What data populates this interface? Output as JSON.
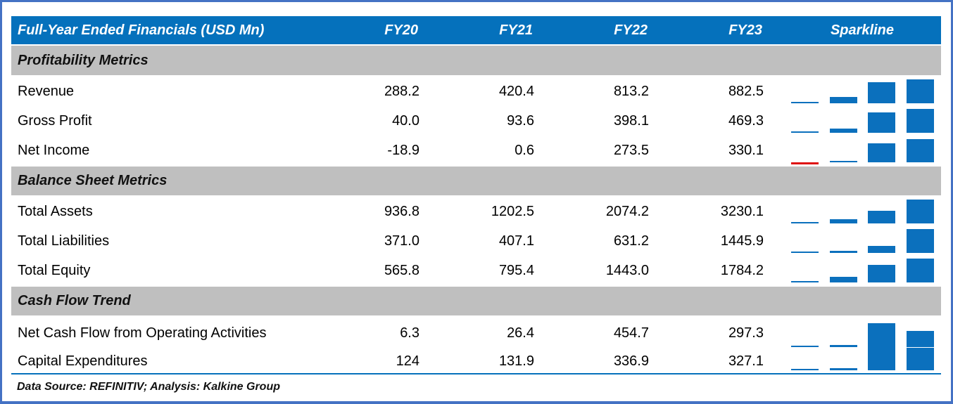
{
  "table": {
    "title": "Full-Year Ended Financials (USD Mn)",
    "columns": [
      "FY20",
      "FY21",
      "FY22",
      "FY23"
    ],
    "sparkline_header": "Sparkline",
    "sections": [
      {
        "heading": "Profitability Metrics",
        "rows": [
          {
            "label": "Revenue",
            "values": [
              "288.2",
              "420.4",
              "813.2",
              "882.5"
            ]
          },
          {
            "label": "Gross Profit",
            "values": [
              "40.0",
              "93.6",
              "398.1",
              "469.3"
            ]
          },
          {
            "label": "Net Income",
            "values": [
              "-18.9",
              "0.6",
              "273.5",
              "330.1"
            ]
          }
        ]
      },
      {
        "heading": "Balance Sheet Metrics",
        "rows": [
          {
            "label": "Total Assets",
            "values": [
              "936.8",
              "1202.5",
              "2074.2",
              "3230.1"
            ]
          },
          {
            "label": "Total Liabilities",
            "values": [
              "371.0",
              "407.1",
              "631.2",
              "1445.9"
            ]
          },
          {
            "label": "Total Equity",
            "values": [
              "565.8",
              "795.4",
              "1443.0",
              "1784.2"
            ]
          }
        ]
      },
      {
        "heading": "Cash Flow Trend",
        "rows": [
          {
            "label": "Net Cash Flow from Operating Activities",
            "values": [
              "6.3",
              "26.4",
              "454.7",
              "297.3"
            ]
          },
          {
            "label": "Capital Expenditures",
            "values": [
              "124",
              "131.9",
              "336.9",
              "327.1"
            ]
          }
        ]
      }
    ]
  },
  "footer": {
    "text": "Data Source: REFINITIV; Analysis: Kalkine Group"
  },
  "colors": {
    "header_blue": "#0571BC",
    "section_gray": "#BFBFBF",
    "bar_blue": "#0B70BD",
    "bar_negative_red": "#DE1010",
    "frame_blue": "#4472C4"
  },
  "chart_data": {
    "type": "table",
    "title": "Full-Year Ended Financials (USD Mn)",
    "categories": [
      "FY20",
      "FY21",
      "FY22",
      "FY23"
    ],
    "series": [
      {
        "name": "Revenue",
        "section": "Profitability Metrics",
        "values": [
          288.2,
          420.4,
          813.2,
          882.5
        ]
      },
      {
        "name": "Gross Profit",
        "section": "Profitability Metrics",
        "values": [
          40.0,
          93.6,
          398.1,
          469.3
        ]
      },
      {
        "name": "Net Income",
        "section": "Profitability Metrics",
        "values": [
          -18.9,
          0.6,
          273.5,
          330.1
        ]
      },
      {
        "name": "Total Assets",
        "section": "Balance Sheet Metrics",
        "values": [
          936.8,
          1202.5,
          2074.2,
          3230.1
        ]
      },
      {
        "name": "Total Liabilities",
        "section": "Balance Sheet Metrics",
        "values": [
          371.0,
          407.1,
          631.2,
          1445.9
        ]
      },
      {
        "name": "Total Equity",
        "section": "Balance Sheet Metrics",
        "values": [
          565.8,
          795.4,
          1443.0,
          1784.2
        ]
      },
      {
        "name": "Net Cash Flow from Operating Activities",
        "section": "Cash Flow Trend",
        "values": [
          6.3,
          26.4,
          454.7,
          297.3
        ]
      },
      {
        "name": "Capital Expenditures",
        "section": "Cash Flow Trend",
        "values": [
          124,
          131.9,
          336.9,
          327.1
        ]
      }
    ],
    "sparkline": {
      "type": "bar",
      "per_row_scaling": "each row scaled to its own min/max",
      "negative_color": "#DE1010",
      "positive_color": "#0B70BD",
      "legend_position": "none",
      "grid": false
    }
  }
}
